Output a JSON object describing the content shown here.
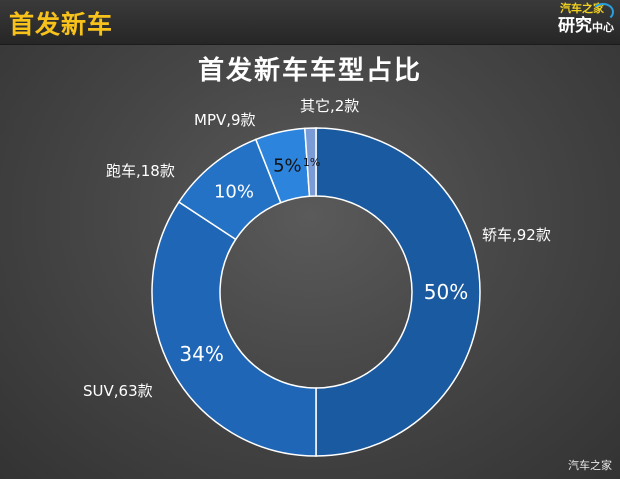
{
  "header": {
    "section_title": "首发新车",
    "logo_line1": "汽车之家",
    "logo_line2": "研究",
    "logo_line2_small": "中心"
  },
  "footer": {
    "watermark": "汽车之家"
  },
  "colors": {
    "accent": "#f7c21a",
    "slices": [
      "#1a5aa0",
      "#1f66b6",
      "#2372c6",
      "#2d84dc",
      "#7b9bd6"
    ]
  },
  "chart_data": {
    "type": "pie",
    "donut": true,
    "title": "首发新车车型占比",
    "categories": [
      "轿车",
      "SUV",
      "跑车",
      "MPV",
      "其它"
    ],
    "counts": [
      92,
      63,
      18,
      9,
      2
    ],
    "percent_labels": [
      "50%",
      "34%",
      "10%",
      "5%",
      "1%"
    ],
    "category_labels": [
      "轿车,92款",
      "SUV,63款",
      "跑车,18款",
      "MPV,9款",
      "其它,2款"
    ]
  }
}
